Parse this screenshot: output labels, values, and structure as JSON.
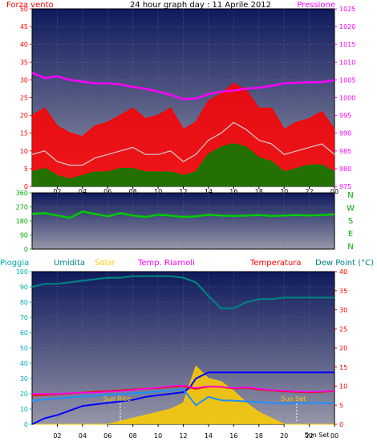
{
  "title": "24 hour graph day : 11 Aprile 2012",
  "colors": {
    "wind_axis": "#ff0000",
    "pressure_axis": "#ff00ff",
    "bearing_axis": "#00aa00",
    "rain_axis": "#00aaaa",
    "humidity": "#008080",
    "solar": "#ffcc00",
    "temp_riarnoli": "#ff00ff",
    "temperature": "#ff0000",
    "dewpoint": "#0000ff"
  },
  "chart_data": [
    {
      "type": "area",
      "xlabel": "",
      "left_label": "Forza vento",
      "right_label": "Pressione",
      "x_ticks": [
        "02",
        "04",
        "06",
        "08",
        "10",
        "12",
        "14",
        "16",
        "18",
        "20",
        "22",
        "00"
      ],
      "y_left_ticks": [
        "0",
        "5",
        "10",
        "15",
        "20",
        "25",
        "30",
        "35",
        "40",
        "45",
        "50"
      ],
      "y_right_ticks": [
        "975",
        "980",
        "985",
        "990",
        "995",
        "1000",
        "1005",
        "1010",
        "1015",
        "1020",
        "1025"
      ],
      "ylim_left": [
        0,
        50
      ],
      "ylim_right": [
        975,
        1025
      ],
      "series": [
        {
          "name": "Forza vento (raffica)",
          "color": "#ff0000",
          "axis": "left",
          "x": [
            0,
            1,
            2,
            3,
            4,
            5,
            6,
            7,
            8,
            9,
            10,
            11,
            12,
            13,
            14,
            15,
            16,
            17,
            18,
            19,
            20,
            21,
            22,
            23,
            24
          ],
          "values": [
            20,
            22,
            17,
            15,
            14,
            17,
            18,
            20,
            22,
            19,
            20,
            22,
            16,
            18,
            24,
            26,
            29,
            27,
            22,
            22,
            16,
            18,
            19,
            21,
            16
          ]
        },
        {
          "name": "Forza vento (media)",
          "color": "#d0d0d0",
          "axis": "left",
          "x": [
            0,
            1,
            2,
            3,
            4,
            5,
            6,
            7,
            8,
            9,
            10,
            11,
            12,
            13,
            14,
            15,
            16,
            17,
            18,
            19,
            20,
            21,
            22,
            23,
            24
          ],
          "values": [
            9,
            10,
            7,
            6,
            6,
            8,
            9,
            10,
            11,
            9,
            9,
            10,
            7,
            9,
            13,
            15,
            18,
            16,
            13,
            12,
            9,
            10,
            11,
            12,
            9
          ]
        },
        {
          "name": "Forza vento (min)",
          "color": "#008000",
          "axis": "left",
          "x": [
            0,
            1,
            2,
            3,
            4,
            5,
            6,
            7,
            8,
            9,
            10,
            11,
            12,
            13,
            14,
            15,
            16,
            17,
            18,
            19,
            20,
            21,
            22,
            23,
            24
          ],
          "values": [
            4,
            5,
            3,
            2,
            3,
            4,
            4,
            5,
            5,
            4,
            4,
            4,
            3,
            4,
            9,
            11,
            12,
            11,
            8,
            7,
            4,
            5,
            6,
            6,
            4
          ]
        },
        {
          "name": "Pressione",
          "color": "#ff00ff",
          "axis": "right",
          "x": [
            0,
            1,
            2,
            3,
            4,
            5,
            6,
            7,
            8,
            9,
            10,
            11,
            12,
            13,
            14,
            15,
            16,
            17,
            18,
            19,
            20,
            21,
            22,
            23,
            24
          ],
          "values": [
            1007,
            1005.5,
            1006,
            1005,
            1004.5,
            1004,
            1004,
            1003.7,
            1003,
            1002.5,
            1001.7,
            1000.8,
            999.6,
            999.7,
            1001,
            1001.7,
            1002,
            1002.5,
            1002.8,
            1003.3,
            1004,
            1004.2,
            1004.3,
            1004.4,
            1004.9
          ]
        }
      ]
    },
    {
      "type": "line",
      "y_ticks": [
        "0",
        "90",
        "180",
        "270",
        "360"
      ],
      "ylim": [
        0,
        360
      ],
      "right_labels": [
        "N",
        "W",
        "S",
        "E",
        "N"
      ],
      "series": [
        {
          "name": "Direzione vento",
          "color": "#00cc00",
          "x": [
            0,
            1,
            2,
            3,
            4,
            5,
            6,
            7,
            8,
            9,
            10,
            11,
            12,
            13,
            14,
            15,
            16,
            17,
            18,
            19,
            20,
            21,
            22,
            23,
            24
          ],
          "values": [
            225,
            230,
            215,
            200,
            240,
            225,
            210,
            230,
            215,
            205,
            220,
            215,
            205,
            210,
            220,
            215,
            212,
            215,
            218,
            212,
            215,
            218,
            215,
            218,
            222
          ]
        }
      ]
    },
    {
      "type": "area",
      "legend": [
        "Pioggia",
        "Umidita",
        "Solar",
        "Temp. Riarnoli",
        "Temperatura",
        "Dew Point (°C)"
      ],
      "x_ticks": [
        "02",
        "04",
        "06",
        "08",
        "10",
        "12",
        "14",
        "16",
        "18",
        "20",
        "22",
        "00"
      ],
      "y_left_ticks": [
        "0",
        "10",
        "20",
        "30",
        "40",
        "50",
        "60",
        "70",
        "80",
        "90",
        "100"
      ],
      "y_right_ticks": [
        "0",
        "5",
        "10",
        "15",
        "20",
        "25",
        "30",
        "35",
        "40"
      ],
      "ylim_left": [
        0,
        100
      ],
      "ylim_right": [
        0,
        40
      ],
      "annotations": [
        "Sun Rise",
        "Sun Set"
      ],
      "x_extra_labels": [
        "Sun Set"
      ],
      "series": [
        {
          "name": "Umidita",
          "color": "#008080",
          "axis": "left",
          "x": [
            0,
            1,
            2,
            3,
            4,
            5,
            6,
            7,
            8,
            9,
            10,
            11,
            12,
            13,
            14,
            15,
            16,
            17,
            18,
            19,
            20,
            21,
            22,
            23,
            24
          ],
          "values": [
            90,
            92,
            92,
            93,
            94,
            95,
            96,
            96,
            97,
            97,
            97,
            97,
            96,
            93,
            84,
            76,
            76,
            80,
            82,
            82,
            83,
            83,
            83,
            83,
            83
          ]
        },
        {
          "name": "Pioggia",
          "color": "#0000ff",
          "axis": "left",
          "x": [
            0,
            1,
            2,
            3,
            4,
            5,
            6,
            7,
            8,
            9,
            10,
            11,
            12,
            12.5,
            13,
            14,
            15,
            16,
            17,
            18,
            19,
            20,
            21,
            22,
            23,
            24
          ],
          "values": [
            0,
            4,
            6,
            9,
            12,
            13,
            14,
            15,
            16,
            18,
            19,
            20,
            21,
            24,
            30,
            34,
            34,
            34,
            34,
            34,
            34,
            34,
            34,
            34,
            34,
            34
          ]
        },
        {
          "name": "Solar",
          "color": "#ffcc00",
          "axis": "left",
          "x": [
            0,
            6,
            7,
            8,
            9,
            10,
            11,
            12,
            13,
            14,
            15,
            16,
            17,
            18,
            19,
            20,
            24
          ],
          "values": [
            0,
            0,
            2,
            4,
            6,
            8,
            10,
            14,
            38,
            30,
            28,
            22,
            14,
            8,
            4,
            0,
            0
          ]
        },
        {
          "name": "Temp. Riarnoli",
          "color": "#ff00ff",
          "axis": "right",
          "x": [
            0,
            1,
            2,
            3,
            4,
            5,
            6,
            7,
            8,
            9,
            10,
            11,
            12,
            13,
            14,
            15,
            16,
            17,
            18,
            19,
            20,
            21,
            22,
            23,
            24
          ],
          "values": [
            8,
            8,
            8,
            8.2,
            8.3,
            8.3,
            8.5,
            8.7,
            9,
            9.3,
            9.6,
            10,
            10.2,
            9.5,
            10,
            9.8,
            9.5,
            9.7,
            9.3,
            9,
            8.8,
            8.6,
            8.5,
            8.6,
            8.8
          ]
        },
        {
          "name": "Temperatura",
          "color": "#ff0000",
          "axis": "right",
          "x": [
            0,
            1,
            2,
            3,
            4,
            5,
            6,
            7,
            8,
            9,
            10,
            11,
            12,
            13,
            14,
            15,
            16,
            17,
            18,
            19,
            20,
            21,
            22,
            23,
            24
          ],
          "values": [
            7.6,
            7.7,
            7.9,
            8.1,
            8.3,
            8.5,
            8.7,
            8.9,
            9.1,
            9.3,
            9.5,
            9.8,
            10,
            9.3,
            9.9,
            9.8,
            9.4,
            9.6,
            9.1,
            8.9,
            8.6,
            8.5,
            8.4,
            8.5,
            8.7
          ]
        },
        {
          "name": "Dew Point (°C)",
          "color": "#1e90ff",
          "axis": "right",
          "x": [
            0,
            1,
            2,
            3,
            4,
            5,
            6,
            7,
            8,
            9,
            10,
            11,
            12,
            13,
            14,
            15,
            16,
            17,
            18,
            19,
            20,
            21,
            22,
            23,
            24
          ],
          "values": [
            6.2,
            6.5,
            6.8,
            7,
            7.3,
            7.5,
            7.7,
            7.9,
            8.1,
            8.3,
            8.6,
            8.9,
            9.2,
            5,
            7.2,
            6.3,
            6.2,
            6,
            5.8,
            5.6,
            5.4,
            5.5,
            5.6,
            5.6,
            5.4
          ]
        }
      ]
    }
  ]
}
